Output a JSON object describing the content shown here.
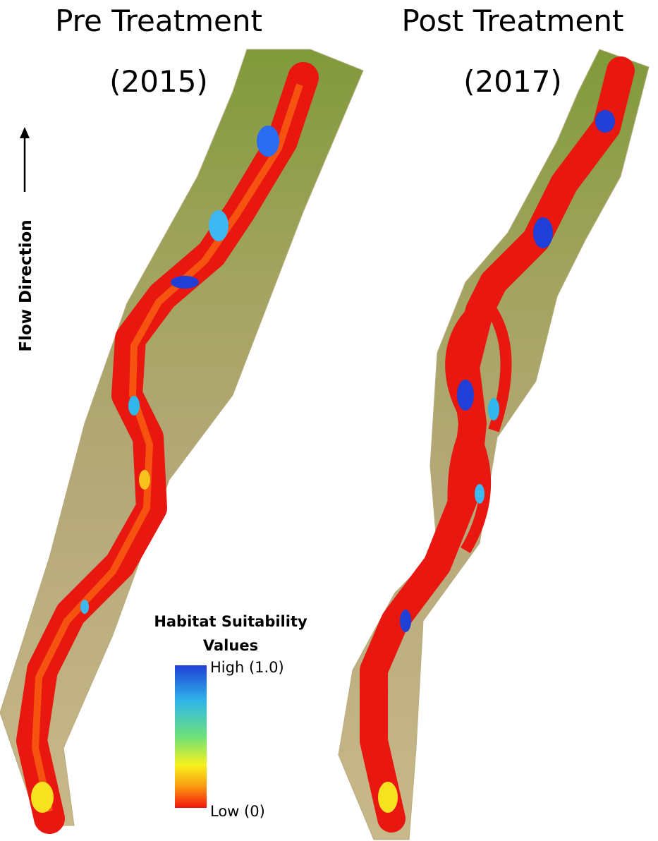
{
  "panels": [
    {
      "title": "Pre Treatment",
      "year": "(2015)"
    },
    {
      "title": "Post Treatment",
      "year": "(2017)"
    }
  ],
  "flow_label": "Flow Direction",
  "legend": {
    "title_lines": [
      "Habitat Suitability",
      "Values"
    ],
    "high_label": "High (1.0)",
    "low_label": "Low (0)"
  }
}
